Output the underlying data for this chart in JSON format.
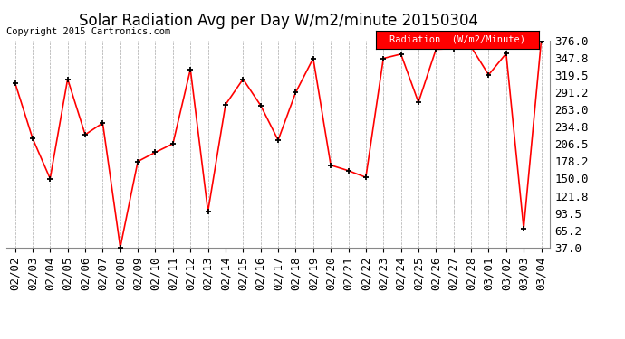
{
  "title": "Solar Radiation Avg per Day W/m2/minute 20150304",
  "copyright": "Copyright 2015 Cartronics.com",
  "legend_label": "Radiation  (W/m2/Minute)",
  "dates": [
    "02/02",
    "02/03",
    "02/04",
    "02/05",
    "02/06",
    "02/07",
    "02/08",
    "02/09",
    "02/10",
    "02/11",
    "02/12",
    "02/13",
    "02/14",
    "02/15",
    "02/16",
    "02/17",
    "02/18",
    "02/19",
    "02/20",
    "02/21",
    "02/22",
    "02/23",
    "02/24",
    "02/25",
    "02/26",
    "02/27",
    "02/28",
    "03/01",
    "03/02",
    "03/03",
    "03/04"
  ],
  "values": [
    307,
    216,
    150,
    313,
    222,
    241,
    37,
    178,
    193,
    207,
    329,
    96,
    271,
    313,
    270,
    213,
    291,
    347,
    172,
    163,
    152,
    347,
    354,
    275,
    362,
    363,
    366,
    320,
    355,
    68,
    376
  ],
  "yticks": [
    37.0,
    65.2,
    93.5,
    121.8,
    150.0,
    178.2,
    206.5,
    234.8,
    263.0,
    291.2,
    319.5,
    347.8,
    376.0
  ],
  "line_color": "red",
  "marker_color": "black",
  "background_color": "#ffffff",
  "grid_color": "#aaaaaa",
  "legend_bg": "red",
  "legend_text_color": "white",
  "title_fontsize": 12,
  "copyright_fontsize": 7.5,
  "tick_fontsize": 9,
  "ymin": 37.0,
  "ymax": 376.0
}
